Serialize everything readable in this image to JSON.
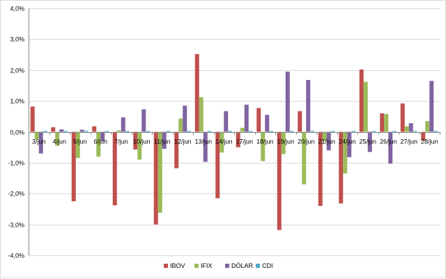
{
  "chart_data": {
    "type": "bar",
    "title": "",
    "xlabel": "",
    "ylabel": "",
    "ylim": [
      -4.0,
      4.0
    ],
    "ytick_step": 1.0,
    "ytick_labels": [
      "-4,0%",
      "-3,0%",
      "-2,0%",
      "-1,0%",
      "0,0%",
      "1,0%",
      "2,0%",
      "3,0%",
      "4,0%"
    ],
    "grid": true,
    "legend_position": "bottom",
    "categories": [
      "3/jun",
      "4/jun",
      "5/jun",
      "6/jun",
      "7/jun",
      "10/jun",
      "11/jun",
      "12/jun",
      "13/jun",
      "14/jun",
      "17/jun",
      "18/jun",
      "19/jun",
      "20/jun",
      "21/jun",
      "24/jun",
      "25/jun",
      "26/jun",
      "27/jun",
      "28/jun"
    ],
    "series": [
      {
        "name": "IBOV",
        "color": "#c0504d",
        "values": [
          0.82,
          0.15,
          -2.25,
          0.18,
          -2.38,
          -0.57,
          -3.0,
          -1.18,
          2.52,
          -2.15,
          -0.5,
          0.77,
          -3.18,
          0.67,
          -2.4,
          -2.32,
          2.02,
          0.6,
          0.92,
          -0.28
        ]
      },
      {
        "name": "IFIX",
        "color": "#9bbb59",
        "values": [
          -0.25,
          -0.45,
          -0.85,
          -0.8,
          0.05,
          -0.9,
          -2.62,
          0.43,
          1.12,
          -0.67,
          0.13,
          -0.95,
          -0.72,
          -1.7,
          -0.3,
          -1.35,
          1.62,
          0.58,
          0.18,
          0.35
        ]
      },
      {
        "name": "DÓLAR",
        "color": "#8064a2",
        "values": [
          -0.7,
          0.08,
          0.07,
          -0.3,
          0.47,
          0.73,
          -0.55,
          0.85,
          -0.97,
          0.67,
          0.88,
          0.55,
          1.95,
          1.68,
          -0.6,
          -0.82,
          -0.65,
          -1.03,
          0.28,
          1.65
        ]
      },
      {
        "name": "CDI",
        "color": "#4bacc6",
        "values": [
          0.03,
          0.03,
          0.03,
          0.03,
          0.03,
          0.03,
          0.03,
          0.03,
          0.03,
          0.03,
          0.03,
          0.03,
          0.03,
          0.03,
          0.03,
          0.03,
          0.03,
          0.03,
          0.03,
          0.03
        ]
      }
    ]
  }
}
